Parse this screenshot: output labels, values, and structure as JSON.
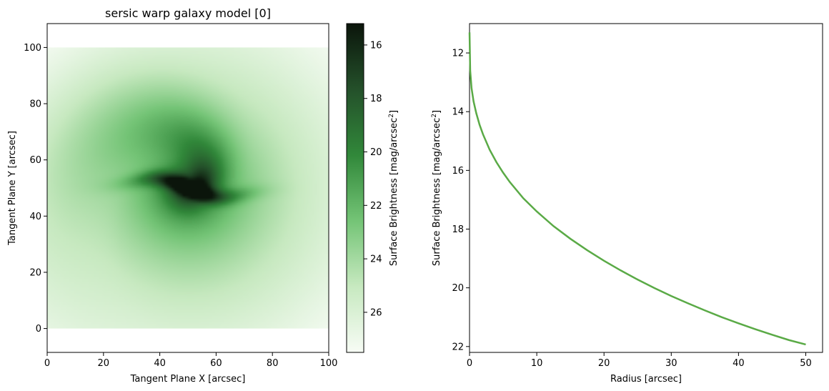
{
  "chart_data": [
    {
      "type": "heatmap",
      "title": "sersic warp galaxy model [0]",
      "xlabel": "Tangent Plane X [arcsec]",
      "ylabel": "Tangent Plane Y [arcsec]",
      "xlim": [
        0,
        100
      ],
      "ylim": [
        -8.5,
        108.5
      ],
      "extent": [
        0,
        100,
        0,
        100
      ],
      "xticks": [
        0,
        20,
        40,
        60,
        80,
        100
      ],
      "yticks": [
        0,
        20,
        40,
        60,
        80,
        100
      ],
      "grid": false,
      "model": {
        "center": [
          50,
          50
        ],
        "peak_value": 15.6,
        "min_value": 27.3
      },
      "colorbar": {
        "label": "Surface Brightness [mag/arcsec",
        "label_sup": "2",
        "label_end": "]",
        "range": [
          15.2,
          27.5
        ],
        "inverted": true,
        "ticks": [
          16,
          18,
          20,
          22,
          24,
          26
        ],
        "colors": [
          "#f7fcf5",
          "#c7e9c0",
          "#74c476",
          "#31883a",
          "#24502a",
          "#0b150b"
        ]
      }
    },
    {
      "type": "line",
      "xlabel": "Radius [arcsec]",
      "ylabel": "Surface Brightness [mag/arcsec",
      "ylabel_sup": "2",
      "ylabel_end": "]",
      "xlim": [
        0,
        52.5
      ],
      "ylim": [
        22.2,
        11
      ],
      "xticks": [
        0,
        10,
        20,
        30,
        40,
        50
      ],
      "yticks": [
        12,
        14,
        16,
        18,
        20,
        22
      ],
      "grid": false,
      "series": [
        {
          "color": "#5aaa46",
          "x": [
            0,
            0.1,
            0.3,
            0.6,
            1,
            1.5,
            2,
            3,
            4,
            5,
            6,
            8,
            10,
            12.5,
            15,
            17.5,
            20,
            22.5,
            25,
            27.5,
            30,
            32.5,
            35,
            37.5,
            40,
            42.5,
            45,
            47.5,
            50
          ],
          "y": [
            11.3,
            12.6,
            13.2,
            13.65,
            14.05,
            14.45,
            14.77,
            15.3,
            15.72,
            16.08,
            16.4,
            16.95,
            17.4,
            17.9,
            18.33,
            18.72,
            19.08,
            19.41,
            19.72,
            20.01,
            20.28,
            20.53,
            20.77,
            21.0,
            21.21,
            21.41,
            21.6,
            21.78,
            21.93
          ]
        }
      ]
    }
  ]
}
